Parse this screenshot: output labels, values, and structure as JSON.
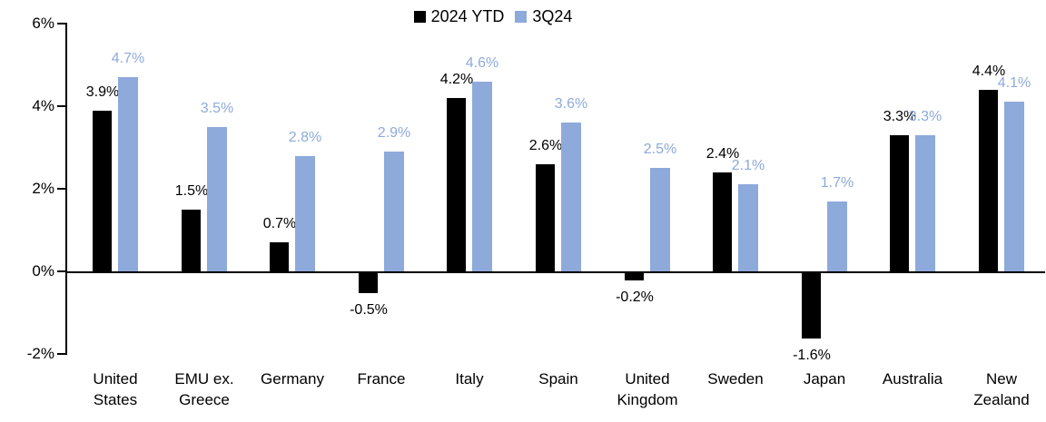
{
  "chart_data": {
    "type": "bar",
    "title": "",
    "xlabel": "",
    "ylabel": "",
    "categories": [
      "United States",
      "EMU ex. Greece",
      "Germany",
      "France",
      "Italy",
      "Spain",
      "United Kingdom",
      "Sweden",
      "Japan",
      "Australia",
      "New Zealand"
    ],
    "categories_display": [
      [
        "United",
        "States"
      ],
      [
        "EMU ex.",
        "Greece"
      ],
      [
        "Germany"
      ],
      [
        "France"
      ],
      [
        "Italy"
      ],
      [
        "Spain"
      ],
      [
        "United",
        "Kingdom"
      ],
      [
        "Sweden"
      ],
      [
        "Japan"
      ],
      [
        "Australia"
      ],
      [
        "New",
        "Zealand"
      ]
    ],
    "series": [
      {
        "name": "2024 YTD",
        "color": "#000000",
        "values": [
          3.9,
          1.5,
          0.7,
          -0.5,
          4.2,
          2.6,
          -0.2,
          2.4,
          -1.6,
          3.3,
          4.4
        ],
        "labels": [
          "3.9%",
          "1.5%",
          "0.7%",
          "-0.5%",
          "4.2%",
          "2.6%",
          "-0.2%",
          "2.4%",
          "-1.6%",
          "3.3%",
          "4.4%"
        ]
      },
      {
        "name": "3Q24",
        "color": "#8EAADB",
        "values": [
          4.7,
          3.5,
          2.8,
          2.9,
          4.6,
          3.6,
          2.5,
          2.1,
          1.7,
          3.3,
          4.1
        ],
        "labels": [
          "4.7%",
          "3.5%",
          "2.8%",
          "2.9%",
          "4.6%",
          "3.6%",
          "2.5%",
          "2.1%",
          "1.7%",
          "3.3%",
          "4.1%"
        ]
      }
    ],
    "ylim": [
      -2,
      6
    ],
    "yticks": [
      "6%",
      "4%",
      "2%",
      "0%",
      "-2%"
    ],
    "ytick_values": [
      6,
      4,
      2,
      0,
      -2
    ],
    "legend_position": "top-center",
    "grid": false,
    "axis_color": "#000000",
    "background_color": "#FFFFFF"
  }
}
